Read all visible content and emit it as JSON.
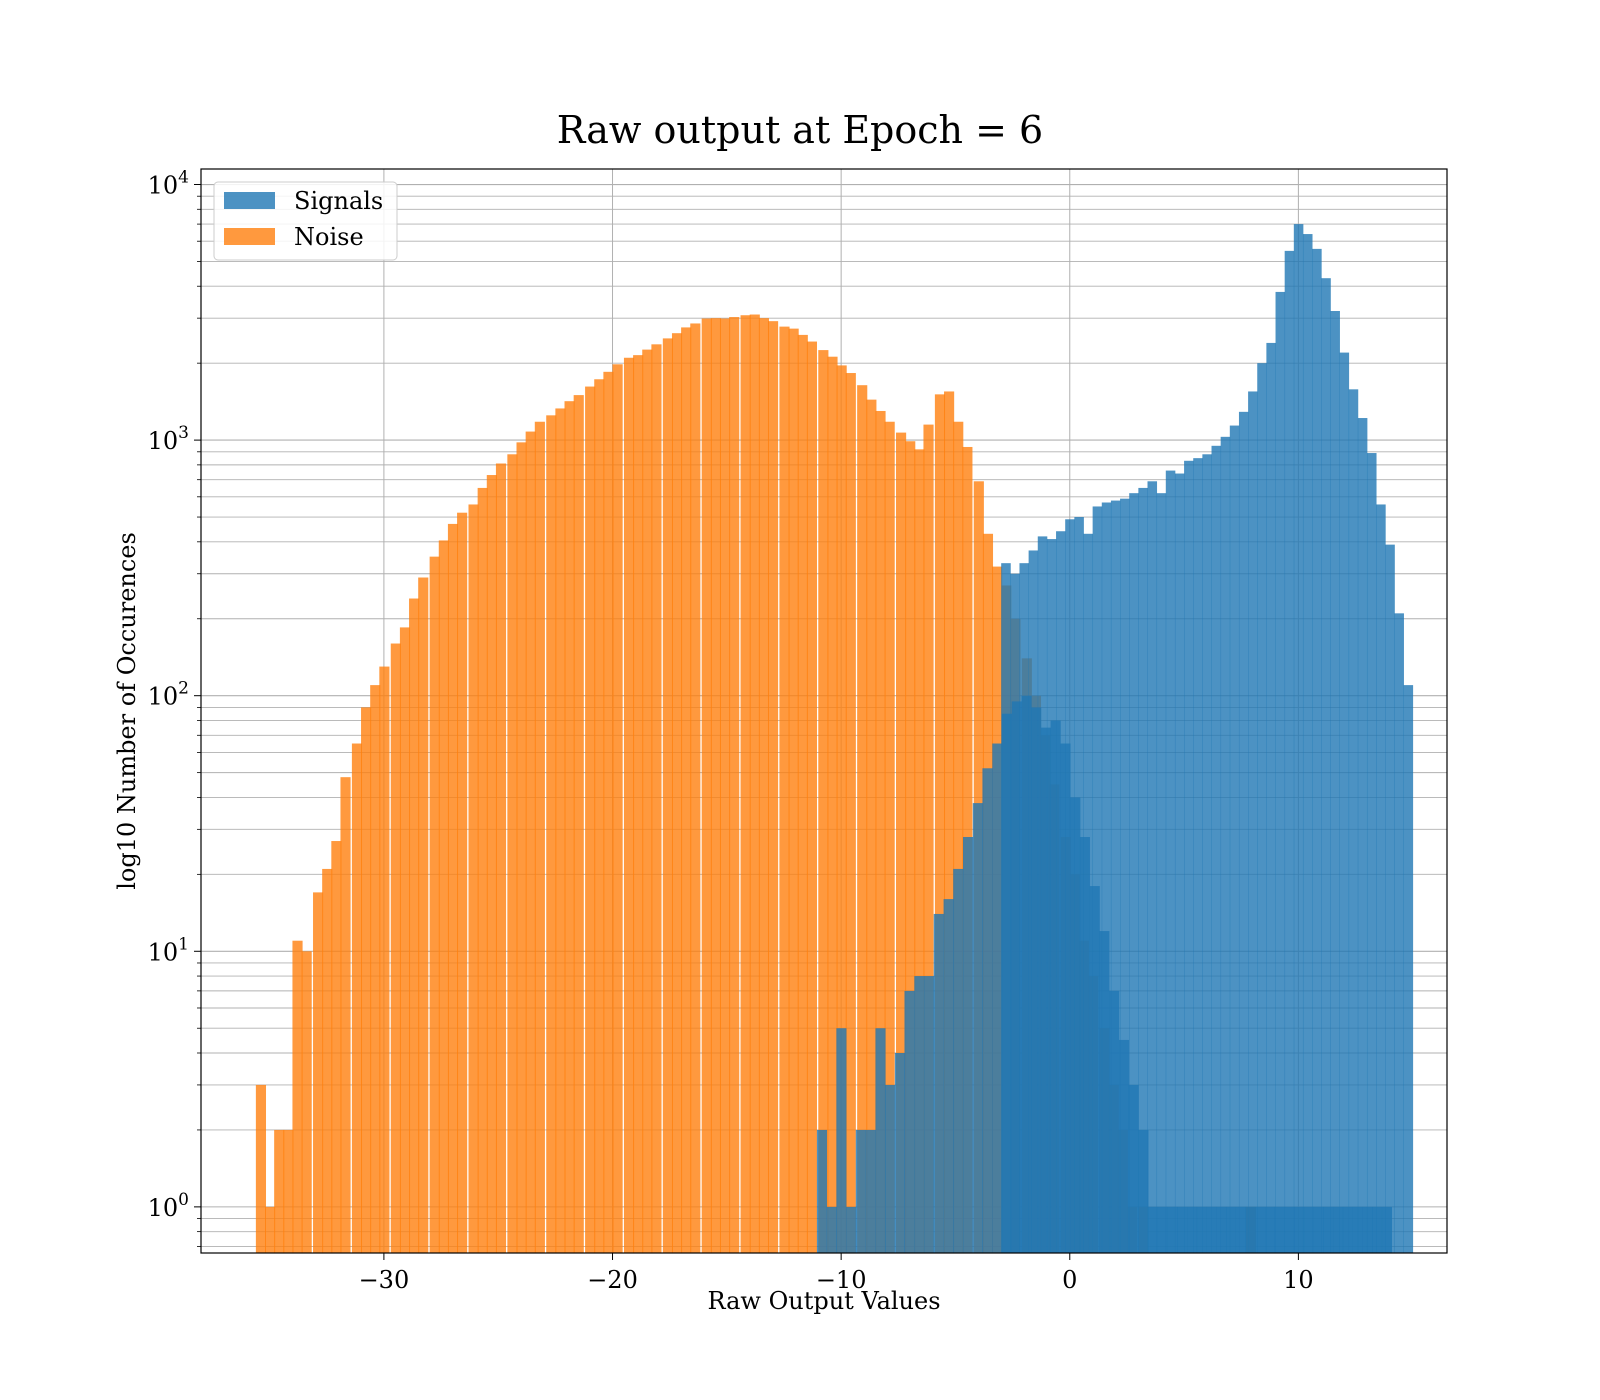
{
  "chart_data": {
    "type": "histogram",
    "title": "Raw output at Epoch = 6",
    "xlabel": "Raw Output Values",
    "ylabel": "log10 Number of Occurences",
    "xlim": [
      -38,
      16.5
    ],
    "ylim": [
      0.66,
      11500
    ],
    "y_scale": "log",
    "grid": true,
    "legend_position": "top-left",
    "x_ticks": [
      -30,
      -20,
      -10,
      0,
      10
    ],
    "x_tick_labels": [
      "−30",
      "−20",
      "−10",
      "0",
      "10"
    ],
    "y_ticks": [
      {
        "value": 1,
        "base": "10",
        "exp": "0"
      },
      {
        "value": 10,
        "base": "10",
        "exp": "1"
      },
      {
        "value": 100,
        "base": "10",
        "exp": "2"
      },
      {
        "value": 1000,
        "base": "10",
        "exp": "3"
      },
      {
        "value": 10000,
        "base": "10",
        "exp": "4"
      }
    ],
    "series": [
      {
        "name": "Signals",
        "color": "#1f77b4",
        "opacity": 0.8,
        "bin_width": 0.426,
        "bins": [
          [
            -11.06,
            2
          ],
          [
            -10.63,
            1
          ],
          [
            -10.21,
            5
          ],
          [
            -9.78,
            1
          ],
          [
            -9.36,
            2
          ],
          [
            -8.93,
            2
          ],
          [
            -8.5,
            5
          ],
          [
            -8.08,
            3
          ],
          [
            -7.65,
            4
          ],
          [
            -7.23,
            7
          ],
          [
            -6.8,
            8
          ],
          [
            -6.37,
            8
          ],
          [
            -5.95,
            14
          ],
          [
            -5.52,
            16
          ],
          [
            -5.1,
            21
          ],
          [
            -4.67,
            28
          ],
          [
            -4.24,
            38
          ],
          [
            -3.82,
            52
          ],
          [
            -3.39,
            65
          ],
          [
            -2.97,
            85
          ],
          [
            -2.54,
            95
          ],
          [
            -2.11,
            100
          ],
          [
            -1.69,
            90
          ],
          [
            -1.26,
            75
          ],
          [
            -0.84,
            80
          ],
          [
            -0.41,
            65
          ],
          [
            0.02,
            40
          ],
          [
            0.44,
            28
          ],
          [
            0.87,
            18
          ],
          [
            1.29,
            12
          ],
          [
            1.72,
            7
          ],
          [
            2.15,
            4.5
          ],
          [
            2.57,
            3
          ],
          [
            3.0,
            2
          ],
          [
            3.42,
            1
          ],
          [
            3.85,
            1
          ],
          [
            4.28,
            1
          ],
          [
            4.7,
            1
          ],
          [
            5.13,
            1
          ],
          [
            5.55,
            1
          ],
          [
            5.98,
            1
          ],
          [
            6.41,
            1
          ],
          [
            6.83,
            1
          ],
          [
            7.26,
            1
          ],
          [
            7.68,
            1
          ],
          [
            8.11,
            1
          ],
          [
            8.54,
            1
          ],
          [
            8.96,
            1
          ],
          [
            9.39,
            1
          ],
          [
            9.81,
            1
          ],
          [
            10.24,
            1
          ],
          [
            10.67,
            1
          ],
          [
            11.09,
            1
          ],
          [
            11.52,
            1
          ],
          [
            11.94,
            1
          ],
          [
            12.37,
            1
          ],
          [
            12.8,
            1
          ],
          [
            13.22,
            1
          ],
          [
            13.65,
            1
          ]
        ],
        "top_bins": [
          [
            -3.0,
            330
          ],
          [
            -2.6,
            300
          ],
          [
            -2.2,
            330
          ],
          [
            -1.8,
            370
          ],
          [
            -1.4,
            420
          ],
          [
            -1.0,
            410
          ],
          [
            -0.6,
            440
          ],
          [
            -0.2,
            490
          ],
          [
            0.2,
            500
          ],
          [
            0.6,
            430
          ],
          [
            1.0,
            550
          ],
          [
            1.4,
            570
          ],
          [
            1.8,
            580
          ],
          [
            2.2,
            590
          ],
          [
            2.6,
            620
          ],
          [
            3.0,
            650
          ],
          [
            3.4,
            690
          ],
          [
            3.8,
            620
          ],
          [
            4.2,
            760
          ],
          [
            4.6,
            740
          ],
          [
            5.0,
            830
          ],
          [
            5.4,
            850
          ],
          [
            5.8,
            880
          ],
          [
            6.2,
            950
          ],
          [
            6.6,
            1030
          ],
          [
            7.0,
            1140
          ],
          [
            7.4,
            1290
          ],
          [
            7.8,
            1550
          ],
          [
            8.2,
            2000
          ],
          [
            8.6,
            2400
          ],
          [
            9.0,
            3800
          ],
          [
            9.4,
            5500
          ],
          [
            9.8,
            7000
          ],
          [
            10.2,
            6400
          ],
          [
            10.6,
            5600
          ],
          [
            11.0,
            4300
          ],
          [
            11.4,
            3200
          ],
          [
            11.8,
            2200
          ],
          [
            12.2,
            1580
          ],
          [
            12.6,
            1220
          ],
          [
            13.0,
            890
          ],
          [
            13.4,
            560
          ],
          [
            13.8,
            390
          ],
          [
            14.2,
            210
          ],
          [
            14.6,
            110
          ]
        ]
      },
      {
        "name": "Noise",
        "color": "#ff7f0e",
        "opacity": 0.8,
        "bins": [
          [
            -35.6,
            3
          ],
          [
            -35.2,
            1
          ],
          [
            -34.8,
            2
          ],
          [
            -34.4,
            2
          ],
          [
            -34.0,
            11
          ],
          [
            -33.6,
            10
          ],
          [
            -33.1,
            17
          ],
          [
            -32.7,
            21
          ],
          [
            -32.3,
            27
          ],
          [
            -31.9,
            48
          ],
          [
            -31.4,
            65
          ],
          [
            -31.0,
            90
          ],
          [
            -30.6,
            110
          ],
          [
            -30.2,
            130
          ],
          [
            -29.7,
            160
          ],
          [
            -29.3,
            185
          ],
          [
            -28.9,
            240
          ],
          [
            -28.5,
            290
          ],
          [
            -28.0,
            350
          ],
          [
            -27.6,
            405
          ],
          [
            -27.2,
            470
          ],
          [
            -26.8,
            520
          ],
          [
            -26.3,
            560
          ],
          [
            -25.9,
            650
          ],
          [
            -25.5,
            730
          ],
          [
            -25.1,
            810
          ],
          [
            -24.6,
            880
          ],
          [
            -24.2,
            980
          ],
          [
            -23.8,
            1080
          ],
          [
            -23.4,
            1180
          ],
          [
            -22.9,
            1250
          ],
          [
            -22.5,
            1330
          ],
          [
            -22.1,
            1420
          ],
          [
            -21.7,
            1500
          ],
          [
            -21.2,
            1620
          ],
          [
            -20.8,
            1730
          ],
          [
            -20.4,
            1850
          ],
          [
            -20.0,
            1980
          ],
          [
            -19.5,
            2100
          ],
          [
            -19.1,
            2150
          ],
          [
            -18.7,
            2260
          ],
          [
            -18.3,
            2370
          ],
          [
            -17.8,
            2500
          ],
          [
            -17.4,
            2620
          ],
          [
            -17.0,
            2760
          ],
          [
            -16.6,
            2860
          ],
          [
            -16.1,
            2990
          ],
          [
            -15.7,
            3000
          ],
          [
            -15.3,
            2990
          ],
          [
            -14.9,
            3030
          ],
          [
            -14.4,
            3080
          ],
          [
            -14.0,
            3100
          ],
          [
            -13.6,
            3000
          ],
          [
            -13.2,
            2920
          ],
          [
            -12.7,
            2780
          ],
          [
            -12.3,
            2730
          ],
          [
            -11.9,
            2580
          ],
          [
            -11.5,
            2430
          ],
          [
            -11.0,
            2250
          ],
          [
            -10.6,
            2120
          ],
          [
            -10.2,
            1960
          ],
          [
            -9.8,
            1830
          ],
          [
            -9.3,
            1640
          ],
          [
            -8.9,
            1440
          ],
          [
            -8.5,
            1300
          ],
          [
            -8.1,
            1180
          ],
          [
            -7.6,
            1070
          ],
          [
            -7.2,
            990
          ],
          [
            -6.8,
            920
          ],
          [
            -6.4,
            1150
          ],
          [
            -5.9,
            1510
          ],
          [
            -5.5,
            1550
          ],
          [
            -5.1,
            1180
          ],
          [
            -4.7,
            940
          ],
          [
            -4.2,
            690
          ],
          [
            -3.8,
            430
          ],
          [
            -3.4,
            320
          ],
          [
            -3.0,
            270
          ],
          [
            -2.6,
            200
          ],
          [
            -2.1,
            140
          ],
          [
            -1.7,
            100
          ],
          [
            -1.3,
            70
          ],
          [
            -0.9,
            45
          ],
          [
            -0.4,
            28
          ],
          [
            0.0,
            20
          ],
          [
            0.4,
            11
          ],
          [
            0.8,
            8
          ],
          [
            1.3,
            5
          ],
          [
            1.7,
            3
          ],
          [
            2.1,
            2
          ],
          [
            2.5,
            1
          ],
          [
            3.0,
            1
          ],
          [
            7.7,
            1
          ]
        ]
      }
    ]
  }
}
